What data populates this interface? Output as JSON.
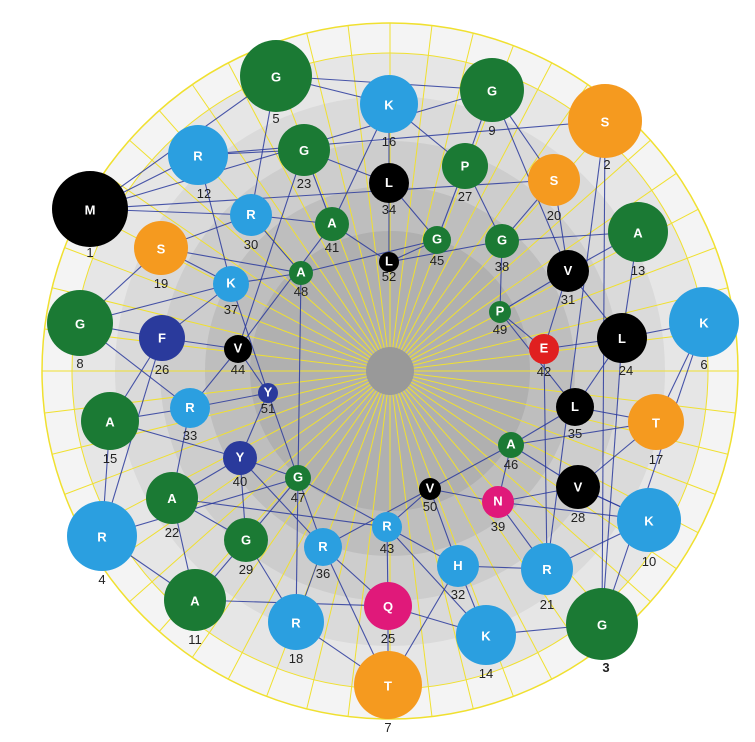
{
  "colors": {
    "G": "#1b7a34",
    "A": "#1b7a34",
    "P": "#1b7a34",
    "K": "#2b9fe0",
    "R": "#2b9fe0",
    "H": "#2b9fe0",
    "S": "#f59a1f",
    "T": "#f59a1f",
    "M": "#000000",
    "L": "#000000",
    "V": "#000000",
    "F": "#2a3a9c",
    "Y": "#2a3a9c",
    "E": "#e02020",
    "N": "#e0197a",
    "Q": "#e0197a",
    "ring_line": "#f0e030",
    "connector": "#2a3a9c"
  },
  "residues": [
    {
      "num": "1",
      "aa": "M"
    },
    {
      "num": "2",
      "aa": "S"
    },
    {
      "num": "3",
      "aa": "G"
    },
    {
      "num": "4",
      "aa": "R"
    },
    {
      "num": "5",
      "aa": "G"
    },
    {
      "num": "6",
      "aa": "K"
    },
    {
      "num": "7",
      "aa": "T"
    },
    {
      "num": "8",
      "aa": "G"
    },
    {
      "num": "9",
      "aa": "G"
    },
    {
      "num": "10",
      "aa": "K"
    },
    {
      "num": "11",
      "aa": "A"
    },
    {
      "num": "12",
      "aa": "R"
    },
    {
      "num": "13",
      "aa": "A"
    },
    {
      "num": "14",
      "aa": "K"
    },
    {
      "num": "15",
      "aa": "A"
    },
    {
      "num": "16",
      "aa": "K"
    },
    {
      "num": "17",
      "aa": "T"
    },
    {
      "num": "18",
      "aa": "R"
    },
    {
      "num": "19",
      "aa": "S"
    },
    {
      "num": "20",
      "aa": "S"
    },
    {
      "num": "21",
      "aa": "R"
    },
    {
      "num": "22",
      "aa": "A"
    },
    {
      "num": "23",
      "aa": "G"
    },
    {
      "num": "24",
      "aa": "L"
    },
    {
      "num": "25",
      "aa": "Q"
    },
    {
      "num": "26",
      "aa": "F"
    },
    {
      "num": "27",
      "aa": "P"
    },
    {
      "num": "28",
      "aa": "V"
    },
    {
      "num": "29",
      "aa": "G"
    },
    {
      "num": "30",
      "aa": "R"
    },
    {
      "num": "31",
      "aa": "V"
    },
    {
      "num": "32",
      "aa": "H"
    },
    {
      "num": "33",
      "aa": "R"
    },
    {
      "num": "34",
      "aa": "L"
    },
    {
      "num": "35",
      "aa": "L"
    },
    {
      "num": "36",
      "aa": "R"
    },
    {
      "num": "37",
      "aa": "K"
    },
    {
      "num": "38",
      "aa": "G"
    },
    {
      "num": "39",
      "aa": "N"
    },
    {
      "num": "40",
      "aa": "Y"
    },
    {
      "num": "41",
      "aa": "A"
    },
    {
      "num": "42",
      "aa": "E"
    },
    {
      "num": "43",
      "aa": "R"
    },
    {
      "num": "44",
      "aa": "V"
    },
    {
      "num": "45",
      "aa": "G"
    },
    {
      "num": "46",
      "aa": "A"
    },
    {
      "num": "47",
      "aa": "G"
    },
    {
      "num": "48",
      "aa": "A"
    },
    {
      "num": "49",
      "aa": "P"
    },
    {
      "num": "50",
      "aa": "V"
    },
    {
      "num": "51",
      "aa": "Y"
    },
    {
      "num": "52",
      "aa": "L"
    }
  ]
}
